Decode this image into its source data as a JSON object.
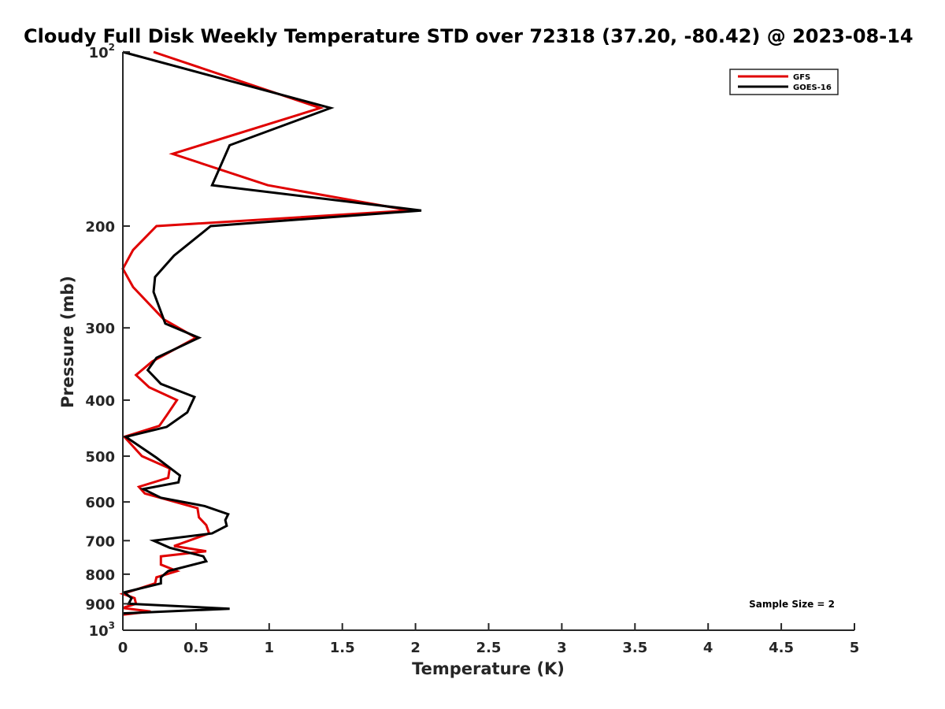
{
  "chart_data": {
    "type": "line",
    "title": "Cloudy Full Disk Weekly Temperature STD over 72318 (37.20, -80.42) @ 2023-08-14",
    "xlabel": "Temperature (K)",
    "ylabel": "Pressure (mb)",
    "xlim": [
      0,
      5
    ],
    "ylim": [
      100,
      1000
    ],
    "y_scale": "log",
    "y_reversed": true,
    "grid": false,
    "legend_position": "top-right",
    "x_ticks": [
      "0",
      "0.5",
      "1",
      "1.5",
      "2",
      "2.5",
      "3",
      "3.5",
      "4",
      "4.5",
      "5"
    ],
    "y_ticks": [
      {
        "value": 100,
        "base": "10",
        "exp": "2"
      },
      {
        "value": 200,
        "label": "200"
      },
      {
        "value": 300,
        "label": "300"
      },
      {
        "value": 400,
        "label": "400"
      },
      {
        "value": 500,
        "label": "500"
      },
      {
        "value": 600,
        "label": "600"
      },
      {
        "value": 700,
        "label": "700"
      },
      {
        "value": 800,
        "label": "800"
      },
      {
        "value": 900,
        "label": "900"
      },
      {
        "value": 1000,
        "base": "10",
        "exp": "3"
      }
    ],
    "annotation": "Sample Size = 2",
    "series": [
      {
        "name": "GFS",
        "color": "#e00000",
        "points": [
          [
            0.21,
            100
          ],
          [
            1.35,
            125
          ],
          [
            0.34,
            150
          ],
          [
            0.99,
            170
          ],
          [
            1.96,
            188
          ],
          [
            0.23,
            200
          ],
          [
            0.07,
            220
          ],
          [
            0.0,
            237
          ],
          [
            0.07,
            255
          ],
          [
            0.28,
            290
          ],
          [
            0.5,
            312
          ],
          [
            0.2,
            343
          ],
          [
            0.09,
            362
          ],
          [
            0.18,
            380
          ],
          [
            0.37,
            400
          ],
          [
            0.3,
            425
          ],
          [
            0.25,
            443
          ],
          [
            0.01,
            463
          ],
          [
            0.13,
            500
          ],
          [
            0.32,
            525
          ],
          [
            0.31,
            545
          ],
          [
            0.11,
            565
          ],
          [
            0.15,
            580
          ],
          [
            0.51,
            615
          ],
          [
            0.52,
            638
          ],
          [
            0.57,
            658
          ],
          [
            0.59,
            680
          ],
          [
            0.35,
            715
          ],
          [
            0.57,
            730
          ],
          [
            0.26,
            745
          ],
          [
            0.26,
            770
          ],
          [
            0.37,
            790
          ],
          [
            0.23,
            810
          ],
          [
            0.22,
            830
          ],
          [
            0.0,
            865
          ],
          [
            0.08,
            880
          ],
          [
            0.09,
            900
          ],
          [
            0.0,
            915
          ],
          [
            0.19,
            928
          ],
          [
            0.0,
            940
          ]
        ]
      },
      {
        "name": "GOES-16",
        "color": "#000000",
        "points": [
          [
            0.0,
            100
          ],
          [
            1.42,
            125
          ],
          [
            0.73,
            145
          ],
          [
            0.61,
            170
          ],
          [
            2.04,
            188
          ],
          [
            0.6,
            200
          ],
          [
            0.35,
            225
          ],
          [
            0.22,
            245
          ],
          [
            0.21,
            260
          ],
          [
            0.29,
            295
          ],
          [
            0.52,
            312
          ],
          [
            0.23,
            338
          ],
          [
            0.17,
            355
          ],
          [
            0.26,
            375
          ],
          [
            0.49,
            395
          ],
          [
            0.44,
            420
          ],
          [
            0.3,
            445
          ],
          [
            0.02,
            463
          ],
          [
            0.23,
            503
          ],
          [
            0.39,
            540
          ],
          [
            0.38,
            555
          ],
          [
            0.14,
            570
          ],
          [
            0.26,
            590
          ],
          [
            0.56,
            610
          ],
          [
            0.72,
            630
          ],
          [
            0.7,
            645
          ],
          [
            0.71,
            660
          ],
          [
            0.61,
            680
          ],
          [
            0.21,
            700
          ],
          [
            0.32,
            720
          ],
          [
            0.55,
            745
          ],
          [
            0.57,
            760
          ],
          [
            0.31,
            790
          ],
          [
            0.26,
            810
          ],
          [
            0.26,
            830
          ],
          [
            0.01,
            860
          ],
          [
            0.06,
            880
          ],
          [
            0.04,
            900
          ],
          [
            0.73,
            918
          ],
          [
            0.0,
            935
          ]
        ]
      }
    ]
  }
}
